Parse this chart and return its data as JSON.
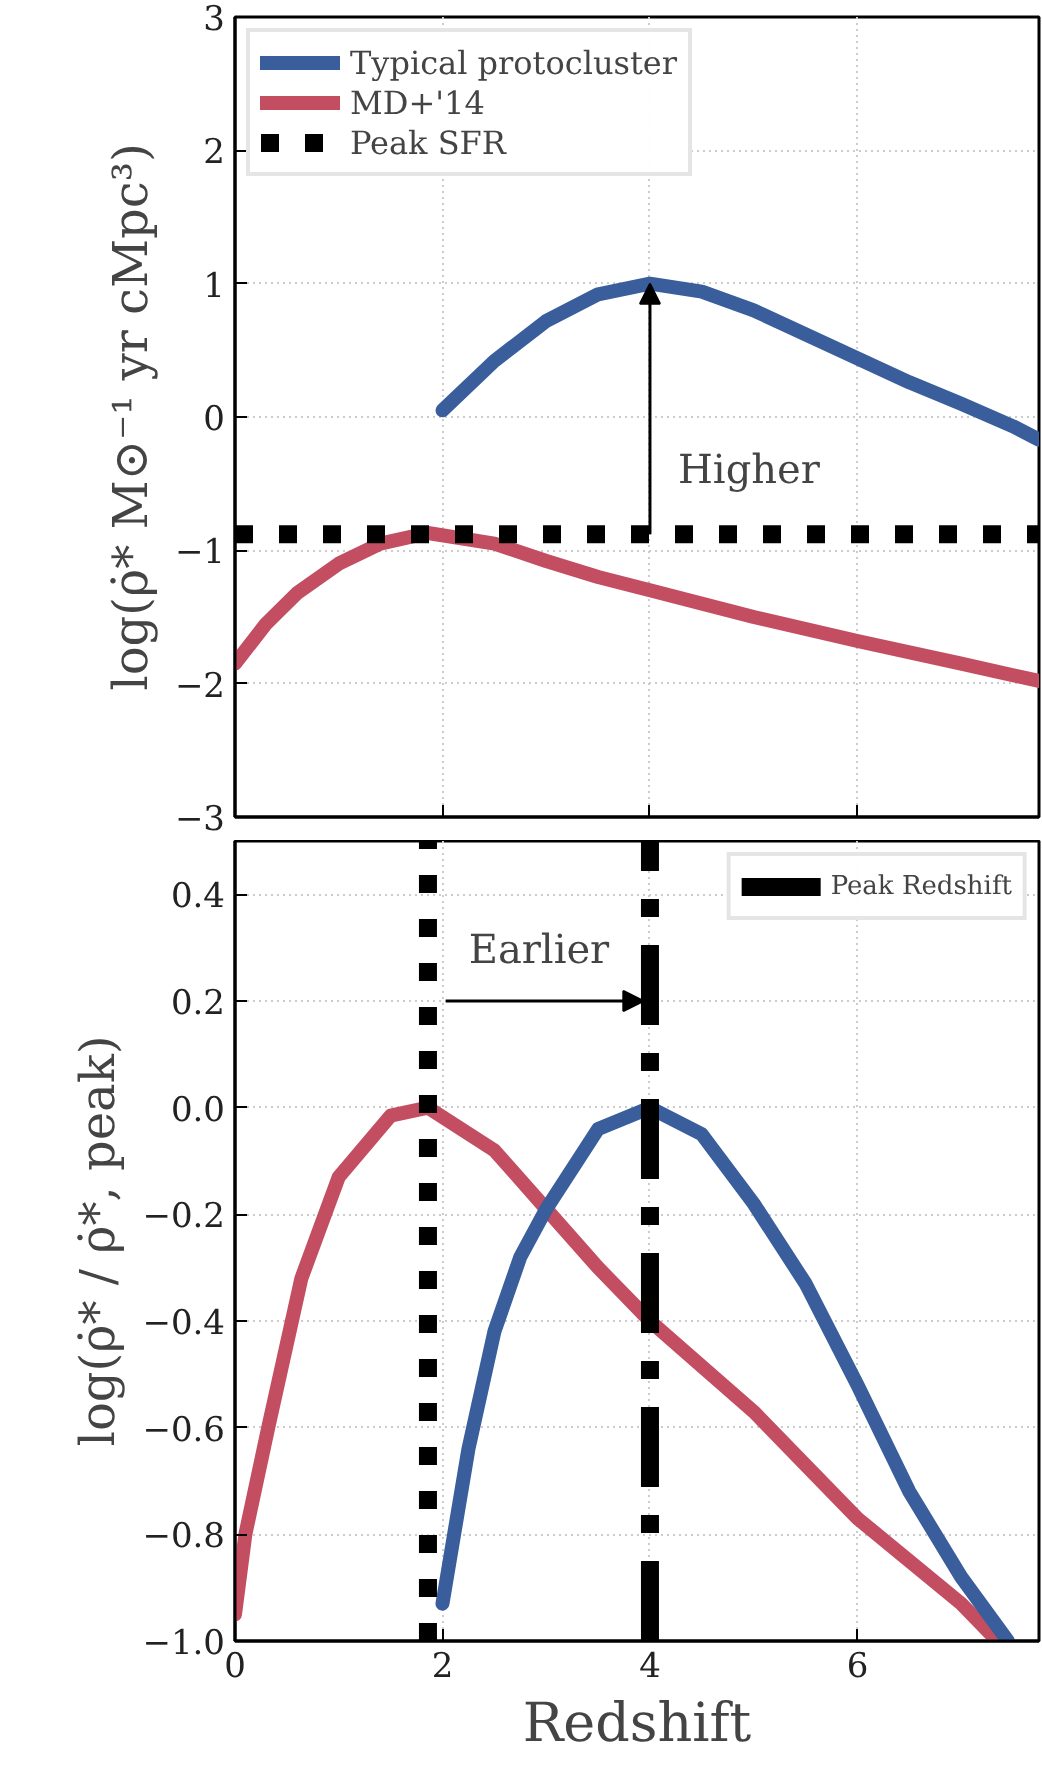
{
  "chart_data": [
    {
      "type": "line",
      "ylabel": "log(ρ̇* M⊙⁻¹ yr cMpc³)",
      "xlim": [
        0,
        7.75
      ],
      "xticks": [
        0,
        2,
        4,
        6
      ],
      "ylim": [
        -3,
        3
      ],
      "yticks": [
        {
          "value": -3,
          "label": "−3"
        },
        {
          "value": -2,
          "label": "−2"
        },
        {
          "value": -1,
          "label": "−1"
        },
        0,
        1,
        2,
        3
      ],
      "tick_labels": "y",
      "grid": true,
      "legend": "top left",
      "series": [
        {
          "name": "Typical protocluster",
          "color": "#3a5d9c",
          "x": [
            2.0,
            2.5,
            3.0,
            3.5,
            4.0,
            4.5,
            5.0,
            5.5,
            6.0,
            6.5,
            7.0,
            7.5,
            7.75
          ],
          "values": [
            0.05,
            0.42,
            0.72,
            0.92,
            1.0,
            0.94,
            0.8,
            0.62,
            0.44,
            0.26,
            0.1,
            -0.07,
            -0.17
          ]
        },
        {
          "name": "MD+'14",
          "color": "#c44e61",
          "x": [
            0.0,
            0.3,
            0.6,
            1.0,
            1.4,
            1.86,
            2.5,
            3.0,
            3.5,
            4.0,
            5.0,
            6.0,
            7.0,
            7.75
          ],
          "values": [
            -1.85,
            -1.55,
            -1.32,
            -1.1,
            -0.95,
            -0.87,
            -0.95,
            -1.08,
            -1.2,
            -1.3,
            -1.5,
            -1.68,
            -1.85,
            -1.98
          ]
        },
        {
          "name": "Peak SFR",
          "color": "#000000",
          "type": "line",
          "line_style": "dotted",
          "x": [
            0,
            7.75
          ],
          "values": [
            -0.88,
            -0.88
          ]
        }
      ],
      "annotations": [
        {
          "text": "Higher",
          "x": 4,
          "y": 1.0
        }
      ]
    },
    {
      "type": "line",
      "xlabel": "Redshift",
      "ylabel": "log(ρ̇* / ρ̇*, peak)",
      "xlim": [
        0,
        7.75
      ],
      "xticks": [
        0,
        2,
        4,
        6
      ],
      "ylim": [
        -1.0,
        0.5
      ],
      "yticks": [
        {
          "value": -1.0,
          "label": "−1.0"
        },
        {
          "value": -0.8,
          "label": "−0.8"
        },
        {
          "value": -0.6,
          "label": "−0.6"
        },
        {
          "value": -0.4,
          "label": "−0.4"
        },
        {
          "value": -0.2,
          "label": "−0.2"
        },
        {
          "value": 0,
          "label": "0.0"
        },
        {
          "value": 0.2,
          "label": "0.2"
        },
        {
          "value": 0.4,
          "label": "0.4"
        }
      ],
      "grid": true,
      "legend": "top right",
      "series": [
        {
          "color": "#c44e61",
          "x": [
            0.0,
            0.1,
            0.32,
            0.64,
            1.0,
            1.5,
            1.86,
            2.5,
            3.0,
            3.5,
            4.0,
            5.0,
            6.0,
            7.0,
            7.35
          ],
          "values": [
            -0.95,
            -0.8,
            -0.6,
            -0.32,
            -0.13,
            -0.015,
            0.0,
            -0.08,
            -0.19,
            -0.3,
            -0.4,
            -0.57,
            -0.77,
            -0.93,
            -1.0
          ]
        },
        {
          "color": "#3a5d9c",
          "x": [
            2.0,
            2.25,
            2.5,
            2.75,
            3.0,
            3.5,
            4.0,
            4.5,
            5.0,
            5.5,
            6.0,
            6.5,
            7.0,
            7.45
          ],
          "values": [
            -0.93,
            -0.64,
            -0.42,
            -0.28,
            -0.19,
            -0.04,
            0.0,
            -0.05,
            -0.18,
            -0.33,
            -0.52,
            -0.72,
            -0.88,
            -1.0
          ]
        },
        {
          "color": "#000000",
          "line_style": "dotted",
          "x": [
            1.86,
            1.86
          ],
          "values": [
            -1.0,
            0.5
          ]
        },
        {
          "name": "Peak Redshift",
          "color": "#000000",
          "line_style": "dashdot",
          "x": [
            4,
            4
          ],
          "values": [
            -1.0,
            0.5
          ]
        }
      ],
      "annotations": [
        "Earlier"
      ]
    }
  ]
}
